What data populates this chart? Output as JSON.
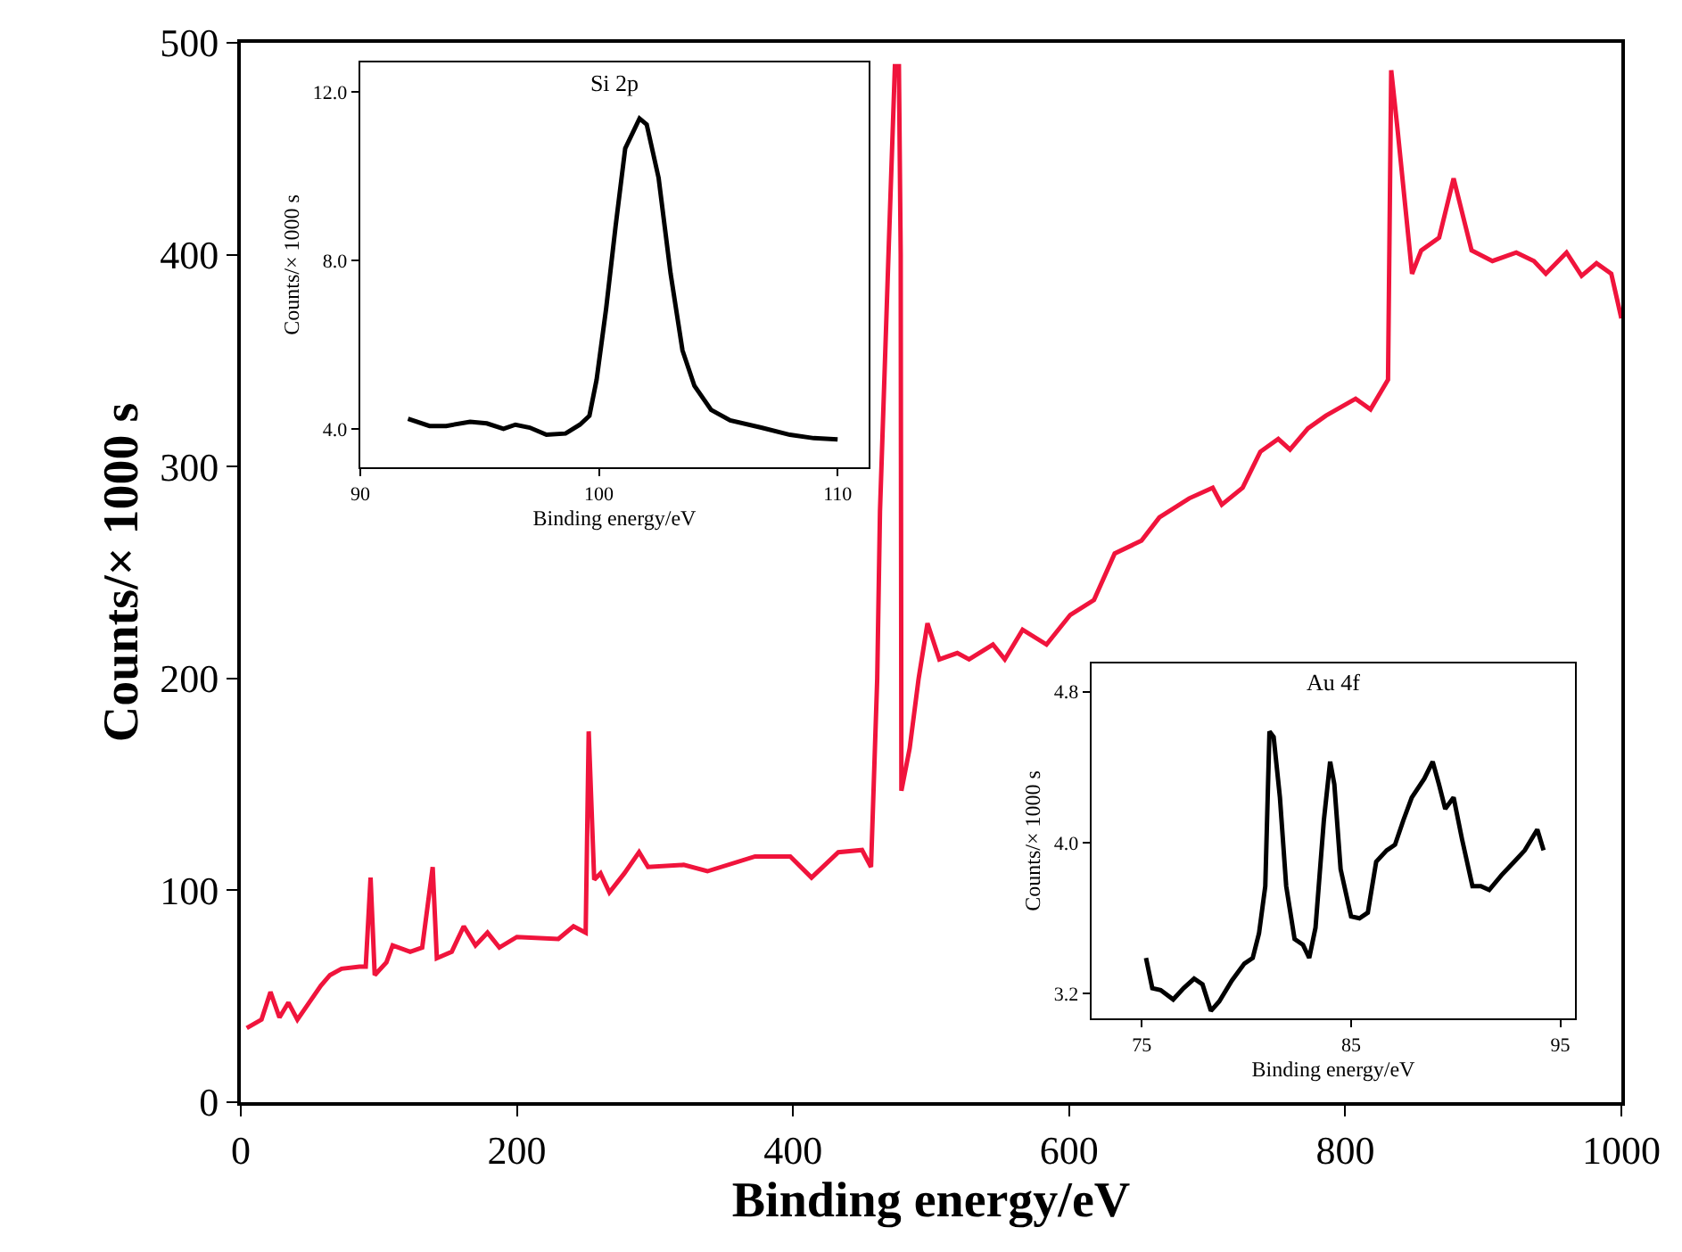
{
  "chart_data": [
    {
      "type": "line",
      "xlabel": "Binding energy/eV",
      "ylabel": "Counts/× 1000 s",
      "xlim": [
        0,
        1000
      ],
      "ylim": [
        0,
        500
      ],
      "xticks": [
        0,
        200,
        400,
        600,
        800,
        1000
      ],
      "yticks": [
        0,
        100,
        200,
        300,
        400,
        500
      ],
      "marker": "none",
      "line_style": "solid",
      "series": [
        {
          "color": "#f0143c",
          "x": [
            4.3,
            15,
            21.5,
            28,
            34.5,
            41,
            49.5,
            58,
            64.6,
            73,
            86,
            90.5,
            94,
            97,
            105.5,
            110,
            122.7,
            131.4,
            139,
            142,
            152.8,
            161.5,
            170,
            178.7,
            187.3,
            200,
            230,
            241,
            249.8,
            252,
            256,
            260.6,
            267,
            277.8,
            288.5,
            295,
            320.8,
            338,
            372.5,
            398,
            413.4,
            432.8,
            450,
            456.5,
            461,
            463,
            469.4,
            473.8,
            476.7,
            478,
            478.5,
            484.5,
            491,
            497.4,
            506,
            519,
            527.5,
            544.8,
            553.4,
            566.3,
            583.6,
            600.8,
            618,
            633,
            652.4,
            665.4,
            687,
            704,
            710.6,
            725.7,
            738.5,
            751.5,
            760,
            773,
            786,
            807.5,
            818.3,
            831,
            833.3,
            837.6,
            848.4,
            855,
            868,
            878.5,
            891.5,
            906.6,
            923.9,
            936.7,
            945.3,
            960.3,
            971.2,
            982,
            992.7,
            1000
          ],
          "values": [
            35,
            39,
            52,
            40,
            47,
            39,
            47,
            55,
            60,
            63,
            64,
            64,
            106,
            60,
            66,
            74,
            71,
            73,
            111,
            68,
            71,
            83,
            74,
            80,
            73,
            78,
            77,
            83,
            80,
            175,
            105,
            108,
            99,
            108,
            118,
            111,
            112,
            109,
            116,
            116,
            106,
            118,
            119,
            111,
            200,
            279,
            405,
            489,
            489,
            400,
            147,
            167,
            200,
            226,
            209,
            212,
            209,
            216,
            209,
            223,
            216,
            230,
            237,
            259,
            265,
            276,
            285,
            290,
            282,
            290,
            307,
            313,
            308,
            318,
            324,
            332,
            327,
            341,
            487,
            461,
            391,
            402,
            408,
            436,
            402,
            397,
            401,
            397,
            391,
            401,
            390,
            396,
            391,
            370
          ]
        }
      ]
    },
    {
      "type": "line",
      "title": "Si 2p",
      "xlabel": "Binding energy/eV",
      "ylabel": "Counts/× 1000 s",
      "xlim": [
        90,
        111.3
      ],
      "ylim": [
        3.1,
        12.7
      ],
      "xticks": [
        90,
        100,
        110
      ],
      "yticks": [
        {
          "value": 4,
          "label": "4.0"
        },
        {
          "value": 8,
          "label": "8.0"
        },
        {
          "value": 12,
          "label": "12.0"
        }
      ],
      "marker": "none",
      "line_style": "solid",
      "series": [
        {
          "color": "#000000",
          "x": [
            92,
            92.9,
            93.6,
            94.6,
            95.3,
            96,
            96.5,
            97.1,
            97.8,
            98.6,
            99.2,
            99.6,
            99.9,
            100.3,
            100.7,
            101.1,
            101.7,
            102,
            102.5,
            103,
            103.5,
            104,
            104.7,
            105.5,
            106.8,
            108,
            109,
            110
          ],
          "values": [
            4.25,
            4.08,
            4.08,
            4.18,
            4.14,
            4.01,
            4.11,
            4.04,
            3.87,
            3.9,
            4.11,
            4.32,
            5.17,
            6.86,
            8.83,
            10.66,
            11.37,
            11.23,
            9.96,
            7.7,
            5.87,
            5.03,
            4.46,
            4.21,
            4.04,
            3.87,
            3.79,
            3.76
          ]
        }
      ]
    },
    {
      "type": "line",
      "title": "Au 4f",
      "xlabel": "Binding energy/eV",
      "ylabel": "Counts/× 1000 s",
      "xlim": [
        72.6,
        95.7
      ],
      "ylim": [
        3.07,
        4.95
      ],
      "xticks": [
        75,
        85,
        95
      ],
      "yticks": [
        {
          "value": 3.2,
          "label": "3.2"
        },
        {
          "value": 4,
          "label": "4.0"
        },
        {
          "value": 4.8,
          "label": "4.8"
        }
      ],
      "marker": "none",
      "line_style": "solid",
      "series": [
        {
          "color": "#000000",
          "x": [
            75.2,
            75.5,
            75.9,
            76.5,
            77,
            77.5,
            77.9,
            78.3,
            78.7,
            79.3,
            79.9,
            80.3,
            80.6,
            80.9,
            81.1,
            81.3,
            81.6,
            81.9,
            82.3,
            82.7,
            83,
            83.3,
            83.7,
            84,
            84.2,
            84.5,
            85,
            85.4,
            85.8,
            86.2,
            86.7,
            87.1,
            87.5,
            87.9,
            88.5,
            88.9,
            89.2,
            89.5,
            89.9,
            90.3,
            90.8,
            91.2,
            91.6,
            92.2,
            92.8,
            93.3,
            93.9,
            94.2
          ],
          "values": [
            3.39,
            3.23,
            3.22,
            3.17,
            3.23,
            3.28,
            3.25,
            3.11,
            3.16,
            3.27,
            3.36,
            3.39,
            3.52,
            3.77,
            4.59,
            4.56,
            4.24,
            3.77,
            3.49,
            3.46,
            3.39,
            3.55,
            4.12,
            4.43,
            4.31,
            3.86,
            3.61,
            3.6,
            3.63,
            3.9,
            3.96,
            3.99,
            4.12,
            4.24,
            4.34,
            4.43,
            4.31,
            4.18,
            4.24,
            4.02,
            3.77,
            3.77,
            3.75,
            3.83,
            3.9,
            3.96,
            4.07,
            3.96
          ]
        }
      ]
    }
  ]
}
